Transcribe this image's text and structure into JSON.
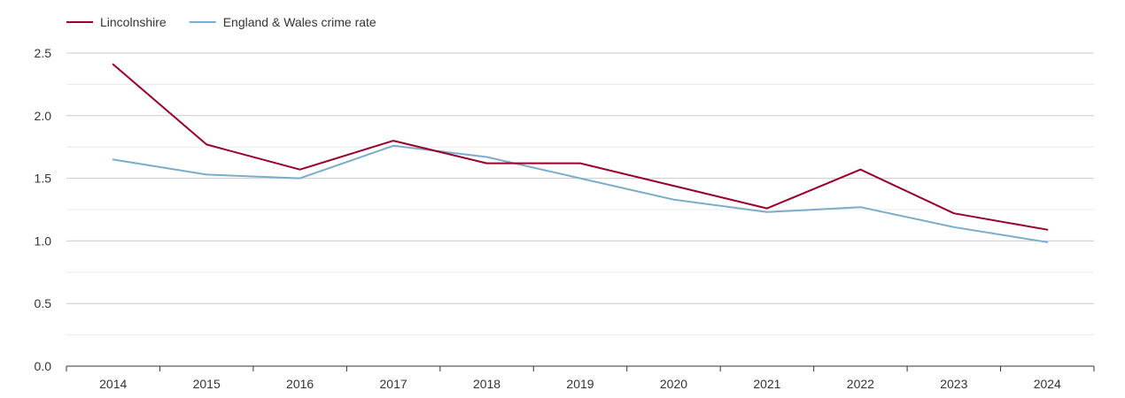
{
  "chart_data": {
    "type": "line",
    "title": "",
    "xlabel": "",
    "ylabel": "",
    "categories": [
      "2014",
      "2015",
      "2016",
      "2017",
      "2018",
      "2019",
      "2020",
      "2021",
      "2022",
      "2023",
      "2024"
    ],
    "ylim": [
      0,
      2.5
    ],
    "yticks": [
      "0.0",
      "0.5",
      "1.0",
      "1.5",
      "2.0",
      "2.5"
    ],
    "grid": true,
    "legend_position": "top-left",
    "series": [
      {
        "name": "Lincolnshire",
        "color": "#99002c",
        "values": [
          2.41,
          1.77,
          1.57,
          1.8,
          1.62,
          1.62,
          1.44,
          1.26,
          1.57,
          1.22,
          1.09
        ]
      },
      {
        "name": "England & Wales crime rate",
        "color": "#7aaccc",
        "values": [
          1.65,
          1.53,
          1.5,
          1.76,
          1.67,
          1.5,
          1.33,
          1.23,
          1.27,
          1.11,
          0.99
        ]
      }
    ]
  }
}
